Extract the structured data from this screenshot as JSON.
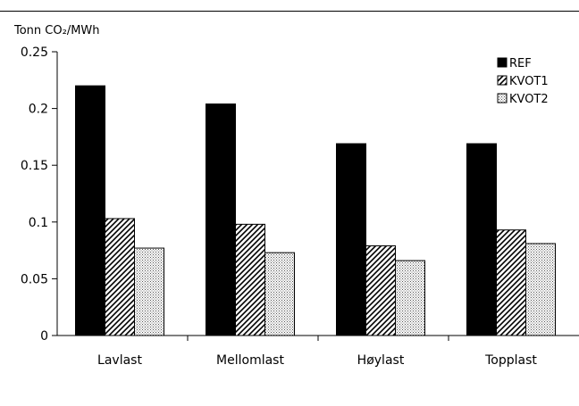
{
  "chart_data": {
    "type": "bar",
    "ylabel": "Tonn CO₂/MWh",
    "categories": [
      "Lavlast",
      "Mellomlast",
      "Høylast",
      "Topplast"
    ],
    "series": [
      {
        "name": "REF",
        "values": [
          0.22,
          0.204,
          0.169,
          0.169
        ]
      },
      {
        "name": "KVOT1",
        "values": [
          0.103,
          0.098,
          0.079,
          0.093
        ]
      },
      {
        "name": "KVOT2",
        "values": [
          0.077,
          0.073,
          0.066,
          0.081
        ]
      }
    ],
    "ylim": [
      0,
      0.25
    ],
    "yticks": [
      "0",
      "0.05",
      "0.1",
      "0.15",
      "0.2",
      "0.25"
    ],
    "yticks_values": [
      0,
      0.05,
      0.1,
      0.15,
      0.2,
      0.25
    ],
    "grid": false,
    "legend_placement": "top-right",
    "series_fills": [
      "solid-black",
      "diagonal-hatch",
      "dotted"
    ]
  }
}
